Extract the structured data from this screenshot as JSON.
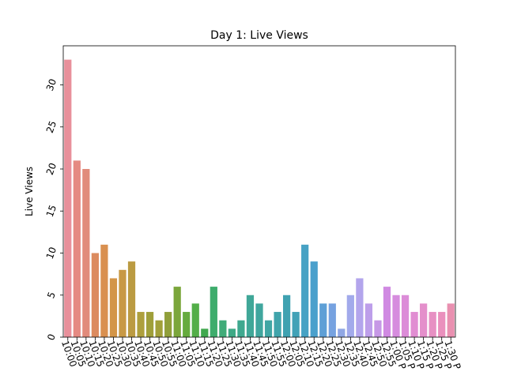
{
  "chart_data": {
    "type": "bar",
    "title": "Day 1: Live Views",
    "xlabel": "",
    "ylabel": "Live Views",
    "ylim": [
      0,
      34.65
    ],
    "yticks": [
      0,
      5,
      10,
      15,
      20,
      25,
      30
    ],
    "grid": false,
    "categories": [
      "10:00",
      "10:05",
      "10:10",
      "10:15",
      "10:20",
      "10:25",
      "10:30",
      "10:35",
      "10:40",
      "10:45",
      "10:50",
      "10:55",
      "11:00",
      "11:05",
      "11:10",
      "11:15",
      "11:20",
      "11:25",
      "11:30",
      "11:35",
      "11:40",
      "11:45",
      "11:50",
      "11:55",
      "12:00",
      "12:05",
      "12:10",
      "12:15",
      "12:20",
      "12:25",
      "12:30",
      "12:35",
      "12:40",
      "12:45",
      "12:50",
      "12:55",
      "1:00 P",
      "1:05 P",
      "1:10 P",
      "1:15 P",
      "1:20 P",
      "1:25 P",
      "1:30 P"
    ],
    "values": [
      33,
      21,
      20,
      10,
      11,
      7,
      8,
      9,
      3,
      3,
      2,
      3,
      6,
      3,
      4,
      1,
      6,
      2,
      1,
      2,
      5,
      4,
      2,
      3,
      5,
      3,
      11,
      9,
      4,
      4,
      1,
      5,
      7,
      4,
      2,
      6,
      5,
      5,
      3,
      4,
      3,
      3,
      4
    ],
    "colors": [
      "#e8909b",
      "#e58a82",
      "#e18b7b",
      "#dc8b5f",
      "#d99050",
      "#d39548",
      "#c89945",
      "#bb9b42",
      "#ad9f3d",
      "#9f9f3a",
      "#a1a03a",
      "#909f3a",
      "#7ba63b",
      "#66ab3e",
      "#53ae48",
      "#40a84e",
      "#3eac6c",
      "#3fab78",
      "#3fa986",
      "#3fa88f",
      "#40a798",
      "#40a69e",
      "#40a6a4",
      "#40a4ab",
      "#40a2b1",
      "#42a2b7",
      "#47a2c4",
      "#4aa0cc",
      "#5e9fd6",
      "#76a2e0",
      "#90a7e4",
      "#a2aaeb",
      "#b3a5ec",
      "#bd9eea",
      "#c698e6",
      "#d08ae2",
      "#d68cde",
      "#dc8cd8",
      "#e18dd2",
      "#e48fcb",
      "#e790c3",
      "#ea90bd",
      "#e990b0"
    ]
  }
}
